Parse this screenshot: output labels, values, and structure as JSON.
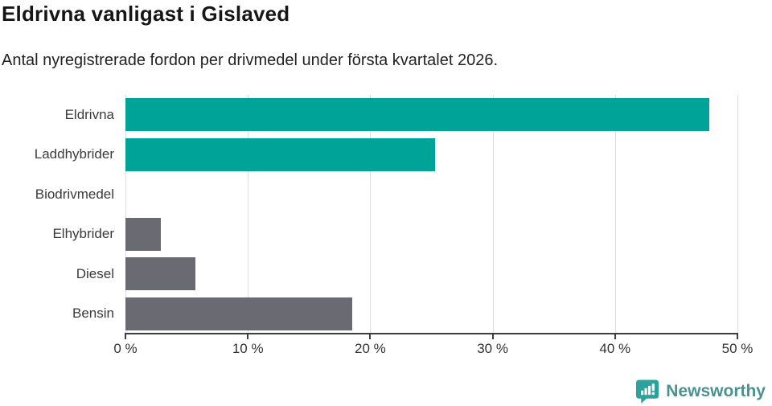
{
  "header": {
    "title": "Eldrivna vanligast i Gislaved",
    "subtitle": "Antal nyregistrerade fordon per drivmedel under första kvartalet 2026."
  },
  "chart_data": {
    "type": "bar",
    "orientation": "horizontal",
    "title": "Eldrivna vanligast i Gislaved",
    "subtitle": "Antal nyregistrerade fordon per drivmedel under första kvartalet 2026.",
    "categories": [
      "Eldrivna",
      "Laddhybrider",
      "Biodrivmedel",
      "Elhybrider",
      "Diesel",
      "Bensin"
    ],
    "values": [
      47.7,
      25.3,
      0,
      2.9,
      5.7,
      18.5
    ],
    "unit": "%",
    "bar_colors": [
      "#00a398",
      "#00a398",
      "#6a6a72",
      "#6a6a72",
      "#6a6a72",
      "#6a6a72"
    ],
    "xlim": [
      0,
      50
    ],
    "xticks": [
      0,
      10,
      20,
      30,
      40,
      50
    ],
    "xtick_labels": [
      "0 %",
      "10 %",
      "20 %",
      "30 %",
      "40 %",
      "50 %"
    ],
    "grid": true,
    "legend": "none"
  },
  "branding": {
    "wordmark": "Newsworthy",
    "icon": "newsworthy-speech-bubble-chart-icon",
    "icon_color": "#2ba29a",
    "wordmark_color": "#4a928f"
  },
  "colors": {
    "highlight_bar": "#00a398",
    "default_bar": "#6a6a72",
    "gridline": "#dedede",
    "axis": "#3d3d3d",
    "label_text": "#3a3a3a"
  }
}
